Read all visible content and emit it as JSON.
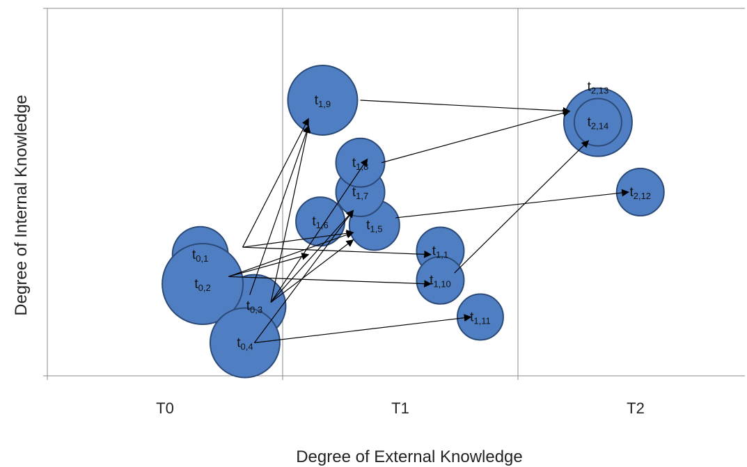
{
  "chart_data": {
    "type": "bubble",
    "xlabel": "Degree of External Knowledge",
    "ylabel": "Degree of Internal Knowledge",
    "x_categories": [
      "T0",
      "T1",
      "T2"
    ],
    "bubbles": [
      {
        "id": "t0_1",
        "base": "t",
        "sub": "0,1",
        "x": 0.65,
        "y": 0.33,
        "r": 40
      },
      {
        "id": "t0_3",
        "base": "t",
        "sub": "0,3",
        "x": 0.88,
        "y": 0.19,
        "r": 45
      },
      {
        "id": "t0_2",
        "base": "t",
        "sub": "0,2",
        "x": 0.66,
        "y": 0.25,
        "r": 58
      },
      {
        "id": "t0_4",
        "base": "t",
        "sub": "0,4",
        "x": 0.84,
        "y": 0.09,
        "r": 50
      },
      {
        "id": "t1_9",
        "base": "t",
        "sub": "1,9",
        "x": 1.17,
        "y": 0.75,
        "r": 50
      },
      {
        "id": "t1_5",
        "base": "t",
        "sub": "1,5",
        "x": 1.39,
        "y": 0.41,
        "r": 36
      },
      {
        "id": "t1_6",
        "base": "t",
        "sub": "1,6",
        "x": 1.16,
        "y": 0.42,
        "r": 35
      },
      {
        "id": "t1_7",
        "base": "t",
        "sub": "1,7",
        "x": 1.33,
        "y": 0.5,
        "r": 35
      },
      {
        "id": "t1_8",
        "base": "t",
        "sub": "1,8",
        "x": 1.33,
        "y": 0.58,
        "r": 35
      },
      {
        "id": "t1_1",
        "base": "t",
        "sub": "1,1",
        "x": 1.67,
        "y": 0.34,
        "r": 34
      },
      {
        "id": "t1_10",
        "base": "t",
        "sub": "1,10",
        "x": 1.67,
        "y": 0.26,
        "r": 34
      },
      {
        "id": "t1_11",
        "base": "t",
        "sub": "1,11",
        "x": 1.84,
        "y": 0.16,
        "r": 33
      },
      {
        "id": "t2_13",
        "base": "t",
        "sub": "2,13",
        "x": 2.34,
        "y": 0.69,
        "r": 49,
        "label_outside": true
      },
      {
        "id": "t2_14",
        "base": "t",
        "sub": "2,14",
        "x": 2.34,
        "y": 0.69,
        "r": 34
      },
      {
        "id": "t2_12",
        "base": "t",
        "sub": "2,12",
        "x": 2.52,
        "y": 0.5,
        "r": 34
      }
    ],
    "arrows": [
      {
        "from": [
          0.83,
          0.35
        ],
        "to": [
          1.11,
          0.7
        ]
      },
      {
        "from": [
          0.95,
          0.2
        ],
        "to": [
          1.11,
          0.68
        ]
      },
      {
        "from": [
          0.86,
          0.22
        ],
        "to": [
          1.11,
          0.68
        ]
      },
      {
        "from": [
          0.83,
          0.35
        ],
        "to": [
          1.3,
          0.39
        ]
      },
      {
        "from": [
          0.83,
          0.35
        ],
        "to": [
          1.63,
          0.33
        ]
      },
      {
        "from": [
          0.77,
          0.27
        ],
        "to": [
          1.3,
          0.39
        ]
      },
      {
        "from": [
          0.77,
          0.27
        ],
        "to": [
          1.11,
          0.33
        ]
      },
      {
        "from": [
          0.77,
          0.27
        ],
        "to": [
          1.63,
          0.25
        ]
      },
      {
        "from": [
          0.95,
          0.2
        ],
        "to": [
          1.36,
          0.59
        ]
      },
      {
        "from": [
          0.95,
          0.2
        ],
        "to": [
          1.3,
          0.45
        ]
      },
      {
        "from": [
          0.95,
          0.2
        ],
        "to": [
          1.3,
          0.37
        ]
      },
      {
        "from": [
          0.88,
          0.09
        ],
        "to": [
          1.3,
          0.45
        ]
      },
      {
        "from": [
          0.88,
          0.09
        ],
        "to": [
          1.8,
          0.16
        ]
      },
      {
        "from": [
          1.33,
          0.75
        ],
        "to": [
          2.22,
          0.72
        ]
      },
      {
        "from": [
          1.42,
          0.58
        ],
        "to": [
          2.22,
          0.72
        ]
      },
      {
        "from": [
          1.73,
          0.28
        ],
        "to": [
          2.3,
          0.64
        ]
      },
      {
        "from": [
          1.48,
          0.43
        ],
        "to": [
          2.47,
          0.5
        ]
      }
    ]
  }
}
